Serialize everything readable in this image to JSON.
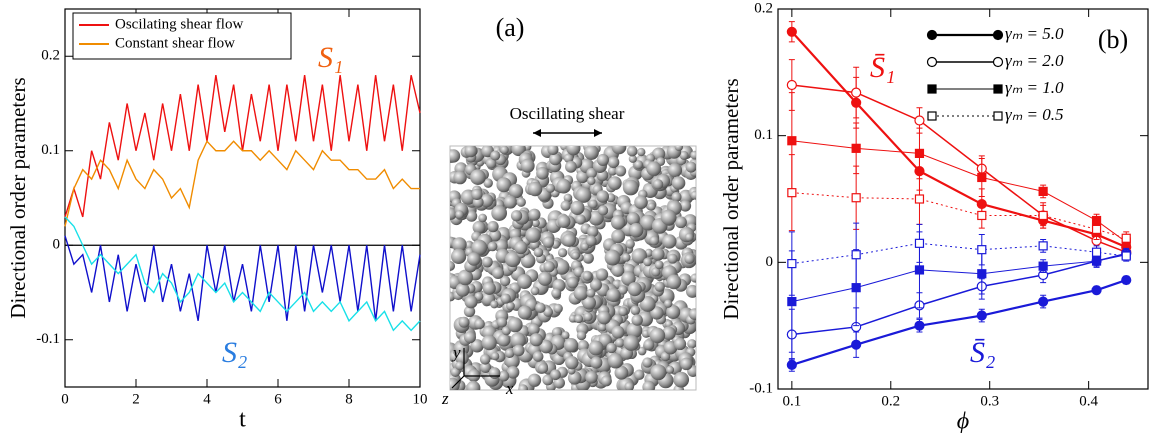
{
  "chart_data": [
    {
      "type": "line",
      "ylabel": "Directional order parameters",
      "xlabel": "t",
      "xlim": [
        0,
        10
      ],
      "ylim": [
        -0.15,
        0.25
      ],
      "xticks": [
        0,
        2,
        4,
        6,
        8,
        10
      ],
      "yticks": [
        -0.1,
        0,
        0.1,
        0.2
      ],
      "zero_line": true,
      "x": [
        0,
        0.25,
        0.5,
        0.75,
        1,
        1.25,
        1.5,
        1.75,
        2,
        2.25,
        2.5,
        2.75,
        3,
        3.25,
        3.5,
        3.75,
        4,
        4.25,
        4.5,
        4.75,
        5,
        5.25,
        5.5,
        5.75,
        6,
        6.25,
        6.5,
        6.75,
        7,
        7.25,
        7.5,
        7.75,
        8,
        8.25,
        8.5,
        8.75,
        9,
        9.25,
        9.5,
        9.75,
        10
      ],
      "series": [
        {
          "name": "Oscilating shear flow",
          "color": "#ee1111",
          "values": [
            0.03,
            0.06,
            0.03,
            0.1,
            0.07,
            0.13,
            0.09,
            0.15,
            0.1,
            0.14,
            0.09,
            0.15,
            0.1,
            0.16,
            0.1,
            0.17,
            0.11,
            0.18,
            0.12,
            0.17,
            0.1,
            0.16,
            0.11,
            0.17,
            0.1,
            0.17,
            0.11,
            0.18,
            0.11,
            0.17,
            0.1,
            0.18,
            0.11,
            0.17,
            0.1,
            0.18,
            0.11,
            0.17,
            0.1,
            0.18,
            0.14
          ]
        },
        {
          "name": "Constant shear flow",
          "color": "#f08c00",
          "values": [
            0.02,
            0.06,
            0.08,
            0.07,
            0.09,
            0.08,
            0.06,
            0.09,
            0.07,
            0.06,
            0.08,
            0.07,
            0.05,
            0.06,
            0.04,
            0.09,
            0.11,
            0.1,
            0.1,
            0.11,
            0.1,
            0.1,
            0.09,
            0.1,
            0.09,
            0.08,
            0.1,
            0.09,
            0.08,
            0.1,
            0.09,
            0.09,
            0.08,
            0.08,
            0.07,
            0.07,
            0.08,
            0.06,
            0.07,
            0.06,
            0.06
          ]
        },
        {
          "color": "#1010cc",
          "values": [
            0.01,
            -0.02,
            -0.01,
            -0.05,
            0,
            -0.06,
            -0.01,
            -0.07,
            -0.02,
            -0.06,
            0,
            -0.06,
            -0.02,
            -0.07,
            -0.03,
            -0.08,
            0,
            -0.05,
            0,
            -0.06,
            -0.02,
            -0.07,
            0,
            -0.06,
            0,
            -0.08,
            0,
            -0.07,
            0,
            -0.05,
            0,
            -0.06,
            0,
            -0.07,
            0,
            -0.08,
            0,
            -0.07,
            0,
            -0.07,
            -0.01
          ]
        },
        {
          "color": "#18e0e8",
          "values": [
            0.03,
            0.02,
            0,
            -0.02,
            -0.01,
            -0.02,
            -0.03,
            -0.02,
            -0.01,
            -0.04,
            -0.05,
            -0.03,
            -0.04,
            -0.06,
            -0.05,
            -0.03,
            -0.04,
            -0.05,
            -0.04,
            -0.06,
            -0.05,
            -0.06,
            -0.07,
            -0.05,
            -0.06,
            -0.07,
            -0.06,
            -0.05,
            -0.07,
            -0.06,
            -0.07,
            -0.06,
            -0.08,
            -0.07,
            -0.06,
            -0.08,
            -0.07,
            -0.09,
            -0.08,
            -0.09,
            -0.08
          ]
        }
      ],
      "annotations": [
        {
          "text": "S₁",
          "color": "#f06010"
        },
        {
          "text": "S₂",
          "color": "#2a7de0"
        }
      ]
    },
    {
      "type": "errorbar",
      "ylabel": "Directional order parameters",
      "xlabel": "ϕ",
      "panel_label": "(b)",
      "xlim": [
        0.086,
        0.46
      ],
      "ylim": [
        -0.1,
        0.2
      ],
      "xticks": [
        0.1,
        0.2,
        0.3,
        0.4
      ],
      "yticks": [
        -0.1,
        0,
        0.1,
        0.2
      ],
      "legend_color": "#000000",
      "x": [
        0.1,
        0.165,
        0.229,
        0.292,
        0.354,
        0.408,
        0.438
      ],
      "series": [
        {
          "name": "γₘ = 5.0",
          "color": "#ee1111",
          "marker": "circle",
          "filled": true,
          "line_width": 2.2,
          "dashed": false,
          "values": [
            0.182,
            0.126,
            0.072,
            0.046,
            0.033,
            0.022,
            0.012
          ],
          "errors": [
            0.008,
            0.02,
            0.015,
            0.012,
            0.006,
            0.006,
            0.005
          ]
        },
        {
          "name": "γₘ = 2.0",
          "color": "#ee1111",
          "marker": "circle",
          "filled": false,
          "line_width": 1.5,
          "dashed": false,
          "values": [
            0.14,
            0.134,
            0.112,
            0.074,
            0.037,
            0.017,
            0.008
          ],
          "errors": [
            0.02,
            0.02,
            0.01,
            0.01,
            0.008,
            0.006,
            0.005
          ]
        },
        {
          "name": "γₘ = 1.0",
          "color": "#ee1111",
          "marker": "square",
          "filled": true,
          "line_width": 1,
          "dashed": false,
          "values": [
            0.096,
            0.09,
            0.086,
            0.067,
            0.056,
            0.033,
            0.016
          ],
          "errors": [
            0.038,
            0.02,
            0.02,
            0.015,
            0.005,
            0.005,
            0.004
          ]
        },
        {
          "name": "γₘ = 0.5",
          "color": "#ee1111",
          "marker": "square",
          "filled": false,
          "line_width": 1,
          "dashed": true,
          "values": [
            0.055,
            0.051,
            0.05,
            0.037,
            0.037,
            0.026,
            0.019
          ],
          "errors": [
            0.03,
            0.025,
            0.02,
            0.01,
            0.01,
            0.008,
            0.005
          ]
        },
        {
          "color": "#1a1ad8",
          "marker": "circle",
          "filled": true,
          "line_width": 2.2,
          "dashed": false,
          "values": [
            -0.081,
            -0.065,
            -0.05,
            -0.042,
            -0.031,
            -0.022,
            -0.014
          ],
          "errors": [
            0.005,
            0.01,
            0.005,
            0.005,
            0.005,
            0.003,
            0.003
          ]
        },
        {
          "color": "#1a1ad8",
          "marker": "circle",
          "filled": false,
          "line_width": 1.5,
          "dashed": false,
          "values": [
            -0.057,
            -0.051,
            -0.034,
            -0.019,
            -0.01,
            0.001,
            0.007
          ],
          "errors": [
            0.02,
            0.015,
            0.01,
            0.006,
            0.006,
            0.005,
            0.004
          ]
        },
        {
          "color": "#1a1ad8",
          "marker": "square",
          "filled": true,
          "line_width": 1,
          "dashed": false,
          "values": [
            -0.031,
            -0.02,
            -0.006,
            -0.009,
            -0.003,
            0.001,
            0.006
          ],
          "errors": [
            0.04,
            0.03,
            0.03,
            0.02,
            0.005,
            0.004,
            0.004
          ]
        },
        {
          "color": "#1a1ad8",
          "marker": "square",
          "filled": false,
          "line_width": 1,
          "dashed": true,
          "values": [
            -0.001,
            0.006,
            0.015,
            0.01,
            0.013,
            0.008,
            0.005
          ],
          "errors": [
            0.025,
            0.025,
            0.015,
            0.012,
            0.005,
            0.005,
            0.004
          ]
        }
      ],
      "annotations": [
        {
          "text": "S̄₁",
          "color": "#ee1111"
        },
        {
          "text": "S̄₂",
          "color": "#1a1ad8"
        }
      ]
    }
  ],
  "figure": {
    "panel_label": "(a)",
    "caption": "Oscillating shear",
    "axes": [
      "x",
      "y",
      "z"
    ]
  }
}
